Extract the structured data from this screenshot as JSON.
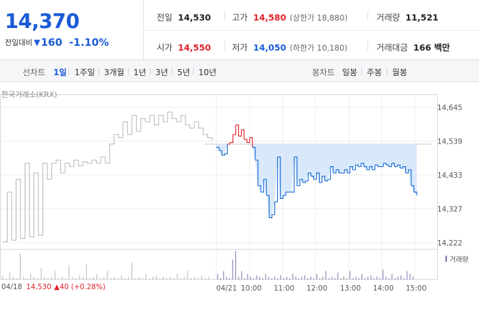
{
  "quote": {
    "price": "14,370",
    "change_label": "전일대비",
    "change_icon": "down-triangle-icon",
    "change_amount": "160",
    "change_rate": "-1.10%",
    "color_down": "#1a5bd6",
    "color_up": "#e0202a"
  },
  "stats": {
    "prev_close": {
      "label": "전일",
      "value": "14,530"
    },
    "high": {
      "label": "고가",
      "value": "14,580",
      "sub": "(상한가 18,880)"
    },
    "volume": {
      "label": "거래량",
      "value": "11,521"
    },
    "open": {
      "label": "시가",
      "value": "14,550"
    },
    "low": {
      "label": "저가",
      "value": "14,050",
      "sub": "(하한가 10,180)"
    },
    "trade_value": {
      "label": "거래대금",
      "value": "166 백만"
    }
  },
  "period_bar": {
    "line_title": "선차트",
    "line_periods": [
      "1일",
      "1주일",
      "3개월",
      "1년",
      "3년",
      "5년",
      "10년"
    ],
    "active_period": "1일",
    "candle_title": "봉차트",
    "candle_periods": [
      "일봉",
      "주봉",
      "월봉"
    ]
  },
  "chart_data": {
    "type": "line",
    "exchange": "한국거래소(KRX)",
    "y_ticks": [
      "14,645",
      "14,539",
      "14,433",
      "14,327",
      "14,222"
    ],
    "ylim": [
      14222,
      14645
    ],
    "prev_close_ref": 14530,
    "x_labels": [
      "04/18",
      "04/21",
      "10:00",
      "11:00",
      "12:00",
      "13:00",
      "14:00",
      "15:00"
    ],
    "grid": true,
    "series": [
      {
        "session": "04/18",
        "prices": [
          14225,
          14380,
          14230,
          14420,
          14235,
          14470,
          14240,
          14440,
          14245,
          14470,
          14420,
          14470,
          14480,
          14440,
          14470,
          14460,
          14480,
          14462,
          14475,
          14470,
          14480,
          14470,
          14490,
          14470,
          14530,
          14560,
          14550,
          14600,
          14560,
          14620,
          14570,
          14610,
          14600,
          14620,
          14590,
          14620,
          14600,
          14630,
          14610,
          14600,
          14620,
          14590,
          14580,
          14600,
          14580,
          14560,
          14550,
          14540
        ],
        "color": "#b5b5b5"
      },
      {
        "session": "04/21",
        "prices": [
          14520,
          14510,
          14495,
          14500,
          14530,
          14535,
          14560,
          14590,
          14555,
          14575,
          14545,
          14535,
          14550,
          14520,
          14480,
          14400,
          14380,
          14420,
          14370,
          14300,
          14310,
          14350,
          14490,
          14360,
          14370,
          14380,
          14380,
          14380,
          14490,
          14400,
          14420,
          14410,
          14415,
          14440,
          14430,
          14420,
          14440,
          14410,
          14430,
          14415,
          14420,
          14460,
          14440,
          14450,
          14440,
          14440,
          14450,
          14440,
          14460,
          14450,
          14465,
          14460,
          14470,
          14460,
          14450,
          14460,
          14450,
          14465,
          14460,
          14460,
          14470,
          14465,
          14460,
          14470,
          14460,
          14465,
          14455,
          14460,
          14440,
          14450,
          14400,
          14380,
          14370
        ],
        "up_color": "#e0202a",
        "down_color": "#1a6fd6",
        "fill": "#d9e8fb"
      }
    ],
    "volume": {
      "legend": "거래량",
      "color": "#b5b5b5",
      "color_today": "#7a6aa8",
      "bars_0418": [
        0.15,
        0.05,
        0.25,
        0.1,
        0.05,
        0.9,
        0.1,
        0.05,
        0.2,
        0.1,
        0.05,
        0.4,
        0.1,
        0.05,
        0.1,
        0.3,
        0.05,
        0.1,
        0.05,
        0.5,
        0.1,
        0.05,
        0.15,
        0.1,
        0.55,
        0.05,
        0.1,
        0.2,
        0.05,
        0.1,
        0.3,
        0.05,
        0.1,
        0.05,
        0.15,
        0.05,
        0.1,
        0.6,
        0.05,
        0.1,
        0.05,
        0.2,
        0.05,
        0.1,
        0.15,
        0.05,
        0.1,
        0.05,
        0.1,
        0.05,
        0.2,
        0.05,
        0.1,
        0.3,
        0.05,
        0.1,
        0.05,
        0.15,
        0.05,
        0.1
      ],
      "bars_0421": [
        0.2,
        0.05,
        0.3,
        0.1,
        0.05,
        0.7,
        1.0,
        0.1,
        0.3,
        0.05,
        0.2,
        0.1,
        0.05,
        0.15,
        0.1,
        0.05,
        0.2,
        0.1,
        0.05,
        0.1,
        0.05,
        0.15,
        0.05,
        0.1,
        0.05,
        0.2,
        0.1,
        0.05,
        0.1,
        0.15,
        0.05,
        0.1,
        0.05,
        0.2,
        0.05,
        0.1,
        0.3,
        0.05,
        0.1,
        0.05,
        0.25,
        0.05,
        0.1,
        0.05,
        0.3,
        0.05,
        0.1,
        0.05,
        0.2,
        0.05,
        0.1,
        0.15,
        0.05,
        0.1,
        0.05,
        0.35,
        0.1,
        0.05,
        0.2,
        0.05,
        0.1,
        0.15,
        0.05,
        0.3,
        0.2,
        0.1
      ]
    },
    "bottom_info": {
      "date": "04/18",
      "price": "14,530",
      "arrow": "▲",
      "change": "40 (+0.28%)"
    }
  }
}
